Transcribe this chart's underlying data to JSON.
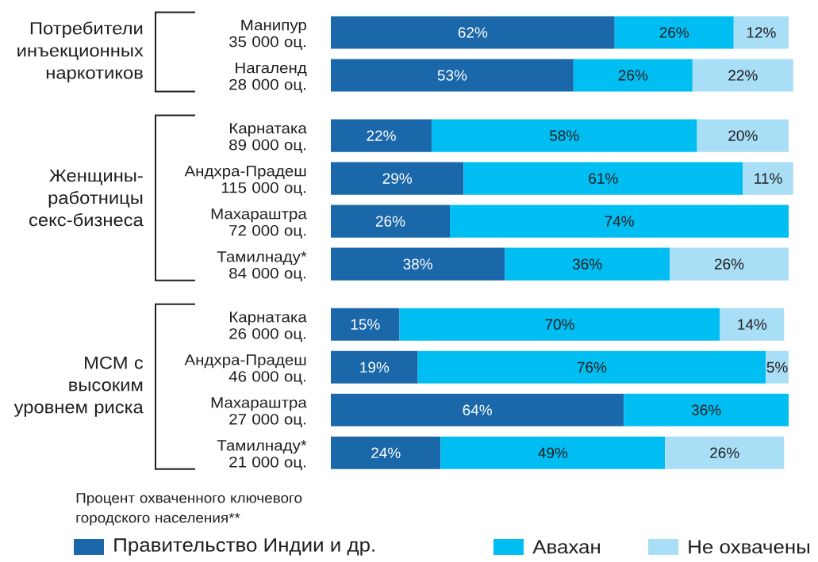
{
  "chart_data": {
    "type": "bar",
    "orientation": "horizontal",
    "stacked": true,
    "categories": [
      "Манипур\n35 000 оц.",
      "Нагаленд\n28 000 оц.",
      "Карнатака\n89 000 оц.",
      "Андхра-Прадеш\n115 000 оц.",
      "Махараштра\n72 000 оц.",
      "Тамилнаду*\n84 000 оц.",
      "Карнатака\n26 000 оц.",
      "Андхра-Прадеш\n46 000 оц.",
      "Махараштра\n27 000 оц.",
      "Тамилнаду*\n21 000 оц."
    ],
    "series": [
      {
        "name": "Правительство Индии и др.",
        "color": "#1a67a9",
        "values": [
          62,
          53,
          22,
          29,
          26,
          38,
          15,
          19,
          64,
          24
        ],
        "value_labels": [
          "62%",
          "53%",
          "22%",
          "29%",
          "26%",
          "38%",
          "15%",
          "19%",
          "64%",
          "24%"
        ]
      },
      {
        "name": "Авахан",
        "color": "#00bef2",
        "values": [
          26,
          26,
          58,
          61,
          74,
          36,
          70,
          76,
          36,
          49
        ],
        "value_labels": [
          "26%",
          "26%",
          "58%",
          "61%",
          "74%",
          "36%",
          "70%",
          "76%",
          "36%",
          "49%"
        ]
      },
      {
        "name": "Не охвачены",
        "color": "#a9def7",
        "values": [
          12,
          22,
          20,
          11,
          null,
          26,
          14,
          5,
          null,
          26
        ],
        "value_labels": [
          "12%",
          "22%",
          "20%",
          "11%",
          null,
          "26%",
          "14%",
          "5%",
          null,
          "26%"
        ]
      }
    ],
    "xlim": [
      0,
      101
    ],
    "tick_labels": "y",
    "legend": "bottom",
    "annotations": [
      "Потребители\nинъекционных\nнаркотиков",
      "Женщины-\nработницы\nсекс-бизнеса",
      "МСМ с\nвысоким\nуровнем риска",
      "Процент охваченного ключевого\nгородского населения**"
    ]
  }
}
